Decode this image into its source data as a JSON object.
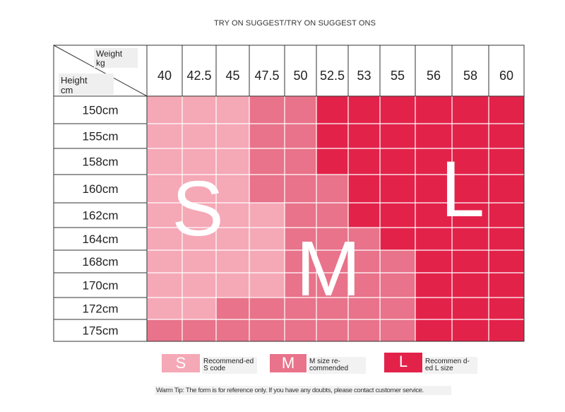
{
  "title": "TRY ON SUGGEST/TRY ON SUGGEST ONS",
  "chart_data": {
    "type": "heatmap",
    "corner_weight_label": "Weight",
    "corner_weight_unit": "kg",
    "corner_height_label": "Height",
    "corner_height_unit": "cm",
    "x_categories": [
      "40",
      "42.5",
      "45",
      "47.5",
      "50",
      "52.5",
      "53",
      "55",
      "56",
      "58",
      "60"
    ],
    "y_categories": [
      "150cm",
      "155cm",
      "158cm",
      "160cm",
      "162cm",
      "164cm",
      "168cm",
      "170cm",
      "172cm",
      "175cm"
    ],
    "cells": [
      [
        "S",
        "S",
        "S",
        "M",
        "M",
        "L",
        "L",
        "L",
        "L",
        "L",
        "L"
      ],
      [
        "S",
        "S",
        "S",
        "M",
        "M",
        "L",
        "L",
        "L",
        "L",
        "L",
        "L"
      ],
      [
        "S",
        "S",
        "S",
        "M",
        "M",
        "L",
        "L",
        "L",
        "L",
        "L",
        "L"
      ],
      [
        "S",
        "S",
        "S",
        "M",
        "M",
        "M",
        "L",
        "L",
        "L",
        "L",
        "L"
      ],
      [
        "S",
        "S",
        "S",
        "S",
        "M",
        "M",
        "L",
        "L",
        "L",
        "L",
        "L"
      ],
      [
        "S",
        "S",
        "S",
        "S",
        "M",
        "M",
        "M",
        "L",
        "L",
        "L",
        "L"
      ],
      [
        "S",
        "S",
        "S",
        "S",
        "M",
        "M",
        "M",
        "M",
        "L",
        "L",
        "L"
      ],
      [
        "S",
        "S",
        "S",
        "S",
        "M",
        "M",
        "M",
        "M",
        "L",
        "L",
        "L"
      ],
      [
        "S",
        "S",
        "M",
        "M",
        "M",
        "M",
        "M",
        "M",
        "L",
        "L",
        "L"
      ],
      [
        "M",
        "M",
        "M",
        "M",
        "M",
        "M",
        "M",
        "M",
        "L",
        "L",
        "L"
      ]
    ],
    "overlay_letters": [
      "S",
      "M",
      "L"
    ]
  },
  "colors": {
    "S": "#f5a8b6",
    "M": "#e8738a",
    "L": "#e3224a"
  },
  "legend": [
    {
      "letter": "S",
      "label": "Recommend-ed S code",
      "color": "#f5a8b6"
    },
    {
      "letter": "M",
      "label": "M size re-commended",
      "color": "#e8738a"
    },
    {
      "letter": "L",
      "label": "Recommen d-ed L size",
      "color": "#e3224a"
    }
  ],
  "tip": "Warm Tip: The form is for reference only. If you have any doubts, please contact customer service."
}
